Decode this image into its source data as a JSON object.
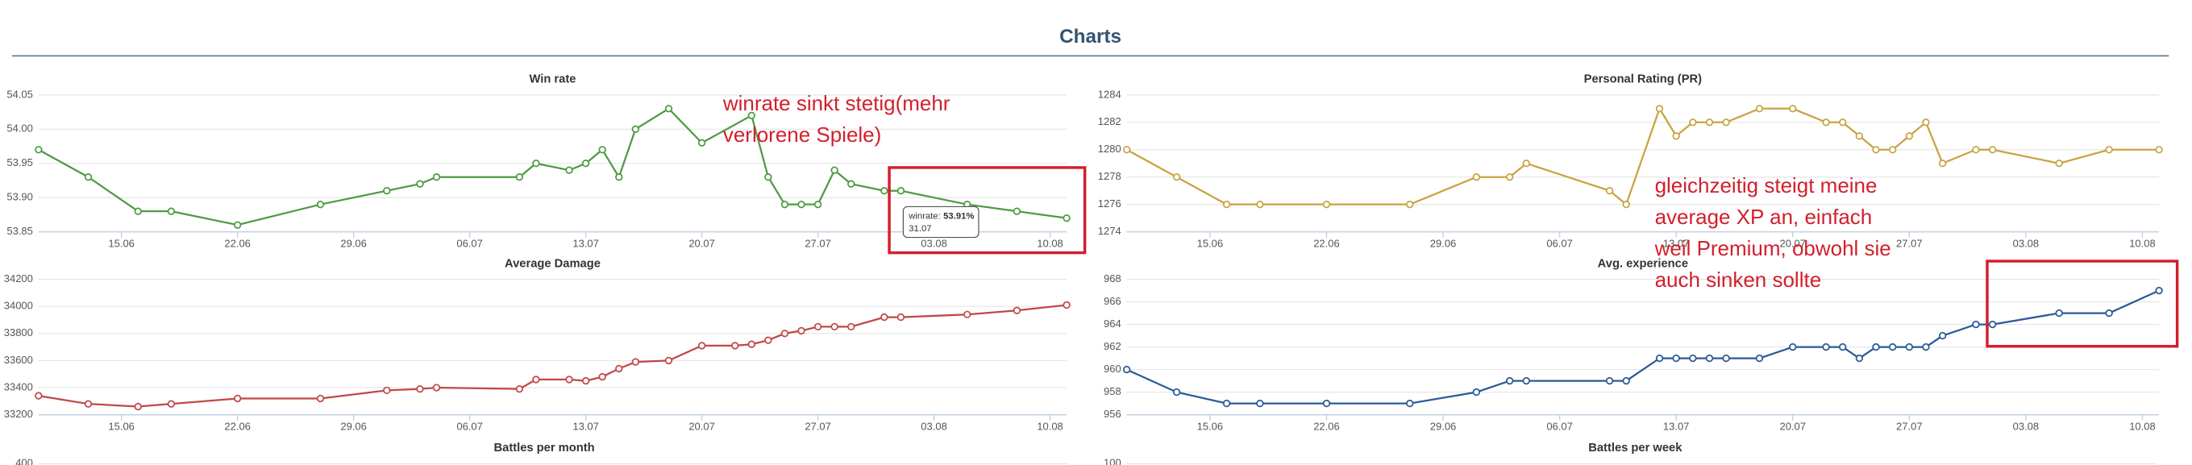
{
  "page_title": "Charts",
  "chart_data": [
    {
      "type": "line",
      "title": "Win rate",
      "color": "#4f9a44",
      "x": [
        "10.06",
        "13.06",
        "16.06",
        "18.06",
        "22.06",
        "27.06",
        "01.07",
        "03.07",
        "04.07",
        "09.07",
        "10.07",
        "12.07",
        "13.07",
        "14.07",
        "15.07",
        "16.07",
        "18.07",
        "20.07",
        "23.07",
        "24.07",
        "25.07",
        "26.07",
        "27.07",
        "28.07",
        "29.07",
        "31.07",
        "01.08",
        "05.08",
        "08.08",
        "11.08"
      ],
      "values": [
        53.97,
        53.93,
        53.88,
        53.88,
        53.86,
        53.89,
        53.91,
        53.92,
        53.93,
        53.93,
        53.95,
        53.94,
        53.95,
        53.97,
        53.93,
        54.0,
        54.03,
        53.98,
        54.02,
        53.93,
        53.89,
        53.89,
        53.89,
        53.94,
        53.92,
        53.91,
        53.91,
        53.89,
        53.88,
        53.87
      ],
      "xlim": [
        "10.06",
        "11.08"
      ],
      "xticks": [
        "15.06",
        "22.06",
        "29.06",
        "06.07",
        "13.07",
        "20.07",
        "27.07",
        "03.08",
        "10.08"
      ],
      "ylim": [
        53.85,
        54.05
      ],
      "yticks": [
        53.85,
        {
          "value": 53.9,
          "label": "53.90"
        },
        53.95,
        {
          "value": 54.0,
          "label": "54.00"
        },
        54.05
      ],
      "grid": true,
      "tooltip": {
        "label": "winrate:",
        "value": "53.91%",
        "date": "31.07"
      }
    },
    {
      "type": "line",
      "title": "Personal Rating (PR)",
      "color": "#c9a341",
      "x": [
        "10.06",
        "13.06",
        "16.06",
        "18.06",
        "22.06",
        "27.06",
        "01.07",
        "03.07",
        "04.07",
        "09.07",
        "10.07",
        "12.07",
        "13.07",
        "14.07",
        "15.07",
        "16.07",
        "18.07",
        "20.07",
        "22.07",
        "23.07",
        "24.07",
        "25.07",
        "26.07",
        "27.07",
        "28.07",
        "29.07",
        "31.07",
        "01.08",
        "05.08",
        "08.08",
        "11.08"
      ],
      "values": [
        1280,
        1278,
        1276,
        1276,
        1276,
        1276,
        1278,
        1278,
        1279,
        1277,
        1276,
        1283,
        1281,
        1282,
        1282,
        1282,
        1283,
        1283,
        1282,
        1282,
        1281,
        1280,
        1280,
        1281,
        1282,
        1279,
        1280,
        1280,
        1279,
        1280,
        1280
      ],
      "xlim": [
        "10.06",
        "11.08"
      ],
      "xticks": [
        "15.06",
        "22.06",
        "29.06",
        "06.07",
        "13.07",
        "20.07",
        "27.07",
        "03.08",
        "10.08"
      ],
      "ylim": [
        1274,
        1284
      ],
      "yticks": [
        1274,
        1276,
        1278,
        1280,
        1282,
        1284
      ],
      "grid": true
    },
    {
      "type": "line",
      "title": "Average Damage",
      "color": "#c24747",
      "x": [
        "10.06",
        "13.06",
        "16.06",
        "18.06",
        "22.06",
        "27.06",
        "01.07",
        "03.07",
        "04.07",
        "09.07",
        "10.07",
        "12.07",
        "13.07",
        "14.07",
        "15.07",
        "16.07",
        "18.07",
        "20.07",
        "22.07",
        "23.07",
        "24.07",
        "25.07",
        "26.07",
        "27.07",
        "28.07",
        "29.07",
        "31.07",
        "01.08",
        "05.08",
        "08.08",
        "11.08"
      ],
      "values": [
        33340,
        33280,
        33260,
        33280,
        33320,
        33320,
        33380,
        33390,
        33400,
        33390,
        33460,
        33460,
        33450,
        33480,
        33540,
        33590,
        33600,
        33710,
        33710,
        33720,
        33750,
        33800,
        33820,
        33850,
        33850,
        33850,
        33920,
        33920,
        33940,
        33970,
        34010
      ],
      "xlim": [
        "10.06",
        "11.08"
      ],
      "xticks": [
        "15.06",
        "22.06",
        "29.06",
        "06.07",
        "13.07",
        "20.07",
        "27.07",
        "03.08",
        "10.08"
      ],
      "ylim": [
        33200,
        34200
      ],
      "yticks": [
        33200,
        33400,
        33600,
        33800,
        34000,
        34200
      ],
      "grid": true
    },
    {
      "type": "line",
      "title": "Avg. experience",
      "color": "#2b5a97",
      "x": [
        "10.06",
        "13.06",
        "16.06",
        "18.06",
        "22.06",
        "27.06",
        "01.07",
        "03.07",
        "04.07",
        "09.07",
        "10.07",
        "12.07",
        "13.07",
        "14.07",
        "15.07",
        "16.07",
        "18.07",
        "20.07",
        "22.07",
        "23.07",
        "24.07",
        "25.07",
        "26.07",
        "27.07",
        "28.07",
        "29.07",
        "31.07",
        "01.08",
        "05.08",
        "08.08",
        "11.08"
      ],
      "values": [
        960,
        958,
        957,
        957,
        957,
        957,
        958,
        959,
        959,
        959,
        959,
        961,
        961,
        961,
        961,
        961,
        961,
        962,
        962,
        962,
        961,
        962,
        962,
        962,
        962,
        963,
        964,
        964,
        965,
        965,
        967
      ],
      "xlim": [
        "10.06",
        "11.08"
      ],
      "xticks": [
        "15.06",
        "22.06",
        "29.06",
        "06.07",
        "13.07",
        "20.07",
        "27.07",
        "03.08",
        "10.08"
      ],
      "ylim": [
        956,
        968
      ],
      "yticks": [
        956,
        958,
        960,
        962,
        964,
        966,
        968
      ],
      "grid": true
    }
  ],
  "annotations": [
    {
      "lines": [
        "winrate sinkt stetig(mehr",
        "verlorene Spiele)"
      ]
    },
    {
      "lines": [
        "gleichzeitig steigt meine",
        "average XP an, einfach",
        "weil Premium, obwohl sie",
        "auch sinken sollte"
      ]
    }
  ],
  "bottom_sections": [
    {
      "title": "Battles per month",
      "top_tick": "400"
    },
    {
      "title": "Battles per week",
      "top_tick": "100"
    }
  ]
}
